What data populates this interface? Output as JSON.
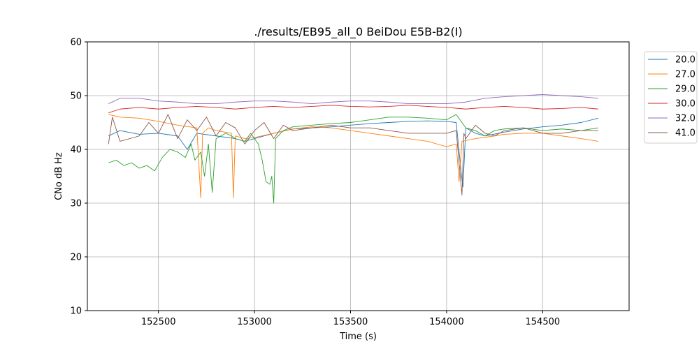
{
  "chart_data": {
    "type": "line",
    "title": "./results/EB95_all_0 BeiDou E5B-B2(I)",
    "xlabel": "Time (s)",
    "ylabel": "CNo dB Hz",
    "xlim": [
      152130,
      154950
    ],
    "ylim": [
      10,
      60
    ],
    "xticks": [
      152500,
      153000,
      153500,
      154000,
      154500
    ],
    "yticks": [
      10,
      20,
      30,
      40,
      50,
      60
    ],
    "grid": true,
    "legend_position": "outside-right-top",
    "series": [
      {
        "name": "20.0",
        "color": "#1f77b4",
        "x": [
          152240,
          152300,
          152400,
          152500,
          152600,
          152650,
          152700,
          152800,
          152900,
          152950,
          153000,
          153100,
          153200,
          153300,
          153400,
          153500,
          153600,
          153700,
          153800,
          153900,
          154000,
          154050,
          154075,
          154085,
          154100,
          154150,
          154200,
          154300,
          154400,
          154500,
          154600,
          154700,
          154790
        ],
        "y": [
          42.5,
          43.5,
          42.8,
          43.0,
          42.5,
          40.0,
          43.0,
          42.5,
          42.0,
          41.5,
          42.0,
          43.0,
          43.8,
          44.0,
          44.2,
          44.5,
          44.8,
          45.0,
          45.2,
          45.3,
          45.2,
          45.0,
          36.0,
          33.0,
          44.0,
          43.0,
          42.5,
          43.2,
          43.8,
          44.2,
          44.5,
          45.0,
          45.8
        ]
      },
      {
        "name": "27.0",
        "color": "#ff7f0e",
        "x": [
          152240,
          152300,
          152400,
          152500,
          152600,
          152700,
          152720,
          152730,
          152760,
          152800,
          152880,
          152890,
          152900,
          152950,
          153000,
          153100,
          153200,
          153300,
          153400,
          153500,
          153600,
          153700,
          153800,
          153900,
          154000,
          154050,
          154065,
          154080,
          154150,
          154250,
          154300,
          154400,
          154500,
          154600,
          154700,
          154790
        ],
        "y": [
          46.5,
          46.0,
          45.8,
          45.2,
          44.5,
          44.0,
          31.0,
          43.0,
          44.0,
          43.5,
          43.0,
          31.0,
          42.5,
          42.0,
          42.2,
          43.0,
          43.8,
          44.2,
          44.0,
          43.5,
          43.0,
          42.5,
          42.0,
          41.5,
          40.5,
          41.0,
          34.0,
          41.5,
          42.0,
          42.5,
          42.8,
          43.0,
          43.0,
          42.5,
          42.0,
          41.5
        ]
      },
      {
        "name": "29.0",
        "color": "#2ca02c",
        "x": [
          152240,
          152280,
          152320,
          152360,
          152400,
          152440,
          152480,
          152520,
          152560,
          152600,
          152640,
          152670,
          152690,
          152720,
          152740,
          152760,
          152780,
          152800,
          152850,
          152880,
          152900,
          152950,
          152980,
          153000,
          153020,
          153040,
          153060,
          153080,
          153090,
          153100,
          153110,
          153150,
          153200,
          153300,
          153400,
          153500,
          153600,
          153700,
          153800,
          153900,
          154000,
          154050,
          154100,
          154150,
          154200,
          154250,
          154300,
          154400,
          154500,
          154600,
          154700,
          154790
        ],
        "y": [
          37.5,
          38.0,
          37.0,
          37.5,
          36.5,
          37.0,
          36.0,
          38.5,
          40.0,
          39.5,
          38.5,
          41.0,
          38.0,
          39.5,
          35.0,
          41.0,
          32.0,
          42.0,
          43.0,
          42.5,
          42.0,
          41.5,
          43.0,
          42.0,
          41.0,
          38.0,
          34.0,
          33.5,
          35.0,
          30.0,
          42.0,
          43.5,
          44.2,
          44.5,
          44.8,
          45.0,
          45.5,
          46.0,
          46.0,
          45.8,
          45.5,
          46.5,
          44.0,
          43.5,
          42.5,
          43.5,
          43.8,
          44.0,
          43.5,
          43.8,
          43.5,
          44.0
        ]
      },
      {
        "name": "30.0",
        "color": "#d62728",
        "x": [
          152240,
          152300,
          152400,
          152500,
          152600,
          152700,
          152800,
          152900,
          153000,
          153100,
          153200,
          153300,
          153400,
          153500,
          153600,
          153700,
          153800,
          153900,
          154000,
          154100,
          154200,
          154300,
          154400,
          154500,
          154600,
          154700,
          154790
        ],
        "y": [
          46.8,
          47.5,
          47.8,
          47.5,
          47.8,
          48.0,
          47.8,
          47.5,
          47.8,
          48.0,
          47.8,
          48.0,
          48.2,
          48.0,
          47.9,
          48.0,
          48.2,
          48.0,
          47.8,
          47.5,
          47.8,
          48.0,
          47.8,
          47.5,
          47.6,
          47.8,
          47.5
        ]
      },
      {
        "name": "32.0",
        "color": "#9467bd",
        "x": [
          152240,
          152300,
          152400,
          152500,
          152600,
          152700,
          152800,
          152900,
          153000,
          153100,
          153200,
          153300,
          153400,
          153500,
          153600,
          153700,
          153800,
          153900,
          154000,
          154100,
          154200,
          154300,
          154400,
          154500,
          154600,
          154700,
          154790
        ],
        "y": [
          48.5,
          49.5,
          49.5,
          49.0,
          48.8,
          48.5,
          48.5,
          48.8,
          49.0,
          49.0,
          48.8,
          48.5,
          48.8,
          49.0,
          49.0,
          48.8,
          48.5,
          48.5,
          48.5,
          48.8,
          49.5,
          49.8,
          50.0,
          50.2,
          50.0,
          49.8,
          49.5
        ]
      },
      {
        "name": "41.0",
        "color": "#8c564b",
        "x": [
          152240,
          152260,
          152300,
          152400,
          152450,
          152500,
          152550,
          152600,
          152650,
          152700,
          152750,
          152800,
          152850,
          152900,
          152950,
          153000,
          153050,
          153100,
          153150,
          153200,
          153300,
          153400,
          153500,
          153600,
          153700,
          153800,
          153900,
          154000,
          154050,
          154080,
          154090,
          154100,
          154150,
          154200,
          154250,
          154300,
          154400,
          154500,
          154600,
          154700,
          154790
        ],
        "y": [
          41.0,
          46.0,
          41.5,
          42.5,
          45.0,
          43.0,
          46.5,
          42.0,
          45.5,
          43.5,
          46.0,
          42.5,
          45.0,
          44.0,
          41.0,
          43.5,
          45.0,
          42.0,
          44.5,
          43.5,
          44.0,
          44.5,
          44.0,
          44.0,
          43.5,
          43.0,
          43.0,
          43.0,
          43.5,
          31.5,
          43.0,
          42.0,
          44.5,
          43.0,
          42.5,
          43.5,
          44.0,
          43.0,
          43.0,
          43.5,
          43.5
        ]
      }
    ]
  }
}
